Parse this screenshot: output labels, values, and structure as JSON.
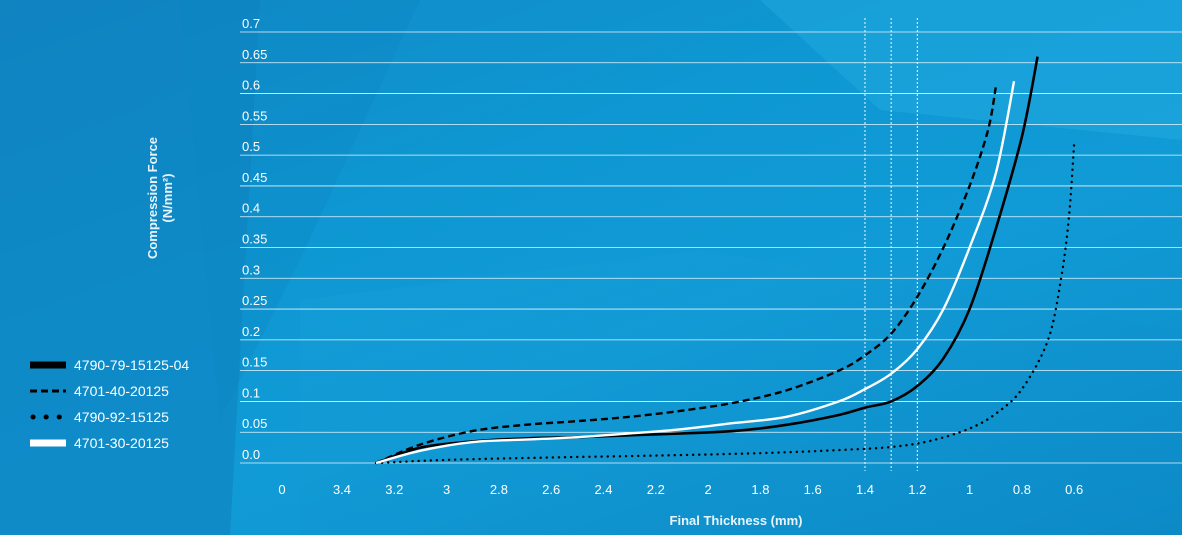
{
  "chart_data": {
    "type": "line",
    "ylabel": "Compression Force",
    "ylabel_unit": "(N/mm²)",
    "xlabel": "Final Thickness (mm)",
    "y_ticks": [
      "0.0",
      "0.05",
      "0.1",
      "0.15",
      "0.2",
      "0.25",
      "0.3",
      "0.35",
      "0.4",
      "0.45",
      "0.5",
      "0.55",
      "0.6",
      "0.65",
      "0.7"
    ],
    "x_tick_labels": [
      "0",
      "3.4",
      "3.2",
      "3",
      "2.8",
      "2.6",
      "2.4",
      "2.2",
      "2",
      "1.8",
      "1.6",
      "1.4",
      "1.2",
      "1",
      "0.8",
      "0.6"
    ],
    "x_axis_reversed": true,
    "ylim": [
      0,
      0.7
    ],
    "reference_lines_x": [
      1.4,
      1.3,
      1.2
    ],
    "grid": "horizontal",
    "legend_position": "left",
    "series": [
      {
        "name": "4790-79-15125-04",
        "style": "solid-thick",
        "color": "#000000",
        "points": [
          [
            3.27,
            0.0
          ],
          [
            3.1,
            0.025
          ],
          [
            2.9,
            0.035
          ],
          [
            2.7,
            0.04
          ],
          [
            2.5,
            0.042
          ],
          [
            2.3,
            0.045
          ],
          [
            2.1,
            0.048
          ],
          [
            1.9,
            0.052
          ],
          [
            1.7,
            0.062
          ],
          [
            1.5,
            0.078
          ],
          [
            1.4,
            0.09
          ],
          [
            1.3,
            0.1
          ],
          [
            1.2,
            0.125
          ],
          [
            1.1,
            0.17
          ],
          [
            1.0,
            0.25
          ],
          [
            0.9,
            0.38
          ],
          [
            0.8,
            0.53
          ],
          [
            0.74,
            0.66
          ]
        ]
      },
      {
        "name": "4701-40-20125",
        "style": "dashed",
        "color": "#000000",
        "points": [
          [
            3.27,
            0.0
          ],
          [
            3.1,
            0.03
          ],
          [
            2.9,
            0.052
          ],
          [
            2.7,
            0.062
          ],
          [
            2.5,
            0.068
          ],
          [
            2.3,
            0.075
          ],
          [
            2.1,
            0.085
          ],
          [
            1.9,
            0.098
          ],
          [
            1.7,
            0.118
          ],
          [
            1.5,
            0.15
          ],
          [
            1.4,
            0.175
          ],
          [
            1.3,
            0.21
          ],
          [
            1.2,
            0.27
          ],
          [
            1.1,
            0.35
          ],
          [
            1.0,
            0.45
          ],
          [
            0.93,
            0.54
          ],
          [
            0.9,
            0.61
          ]
        ]
      },
      {
        "name": "4790-92-15125",
        "style": "dotted",
        "color": "#000000",
        "points": [
          [
            3.27,
            0.0
          ],
          [
            3.0,
            0.005
          ],
          [
            2.6,
            0.009
          ],
          [
            2.2,
            0.012
          ],
          [
            1.8,
            0.016
          ],
          [
            1.5,
            0.021
          ],
          [
            1.3,
            0.026
          ],
          [
            1.15,
            0.036
          ],
          [
            1.0,
            0.056
          ],
          [
            0.9,
            0.08
          ],
          [
            0.8,
            0.12
          ],
          [
            0.7,
            0.2
          ],
          [
            0.65,
            0.3
          ],
          [
            0.62,
            0.4
          ],
          [
            0.6,
            0.52
          ]
        ]
      },
      {
        "name": "4701-30-20125",
        "style": "solid",
        "color": "#ffffff",
        "points": [
          [
            3.27,
            0.0
          ],
          [
            3.1,
            0.02
          ],
          [
            2.9,
            0.034
          ],
          [
            2.7,
            0.038
          ],
          [
            2.5,
            0.042
          ],
          [
            2.3,
            0.048
          ],
          [
            2.1,
            0.055
          ],
          [
            1.9,
            0.065
          ],
          [
            1.7,
            0.075
          ],
          [
            1.5,
            0.1
          ],
          [
            1.4,
            0.12
          ],
          [
            1.3,
            0.145
          ],
          [
            1.2,
            0.185
          ],
          [
            1.1,
            0.25
          ],
          [
            1.0,
            0.35
          ],
          [
            0.9,
            0.47
          ],
          [
            0.83,
            0.62
          ]
        ]
      }
    ]
  },
  "colors": {
    "background": "#0e97d2",
    "gridline": "#ffffff",
    "text": "#ffffff"
  }
}
